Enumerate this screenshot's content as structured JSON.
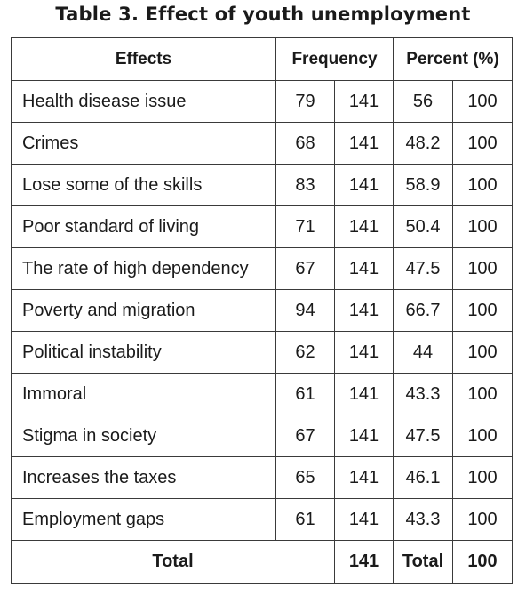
{
  "caption": "Table 3. Effect of youth unemployment",
  "header": {
    "effects": "Effects",
    "frequency": "Frequency",
    "percent": "Percent (%)"
  },
  "rows": [
    {
      "effect": "Health disease issue",
      "freq": "79",
      "freq_total": "141",
      "percent": "56",
      "percent_total": "100"
    },
    {
      "effect": "Crimes",
      "freq": "68",
      "freq_total": "141",
      "percent": "48.2",
      "percent_total": "100"
    },
    {
      "effect": "Lose some of the skills",
      "freq": "83",
      "freq_total": "141",
      "percent": "58.9",
      "percent_total": "100"
    },
    {
      "effect": "Poor standard of living",
      "freq": "71",
      "freq_total": "141",
      "percent": "50.4",
      "percent_total": "100"
    },
    {
      "effect": "The rate of high dependency",
      "freq": "67",
      "freq_total": "141",
      "percent": "47.5",
      "percent_total": "100"
    },
    {
      "effect": "Poverty and migration",
      "freq": "94",
      "freq_total": "141",
      "percent": "66.7",
      "percent_total": "100"
    },
    {
      "effect": "Political instability",
      "freq": "62",
      "freq_total": "141",
      "percent": "44",
      "percent_total": "100"
    },
    {
      "effect": "Immoral",
      "freq": "61",
      "freq_total": "141",
      "percent": "43.3",
      "percent_total": "100"
    },
    {
      "effect": "Stigma in society",
      "freq": "67",
      "freq_total": "141",
      "percent": "47.5",
      "percent_total": "100"
    },
    {
      "effect": "Increases the taxes",
      "freq": "65",
      "freq_total": "141",
      "percent": "46.1",
      "percent_total": "100"
    },
    {
      "effect": "Employment gaps",
      "freq": "61",
      "freq_total": "141",
      "percent": "43.3",
      "percent_total": "100"
    }
  ],
  "total": {
    "label": "Total",
    "freq_total": "141",
    "percent_label": "Total",
    "percent_total": "100"
  }
}
